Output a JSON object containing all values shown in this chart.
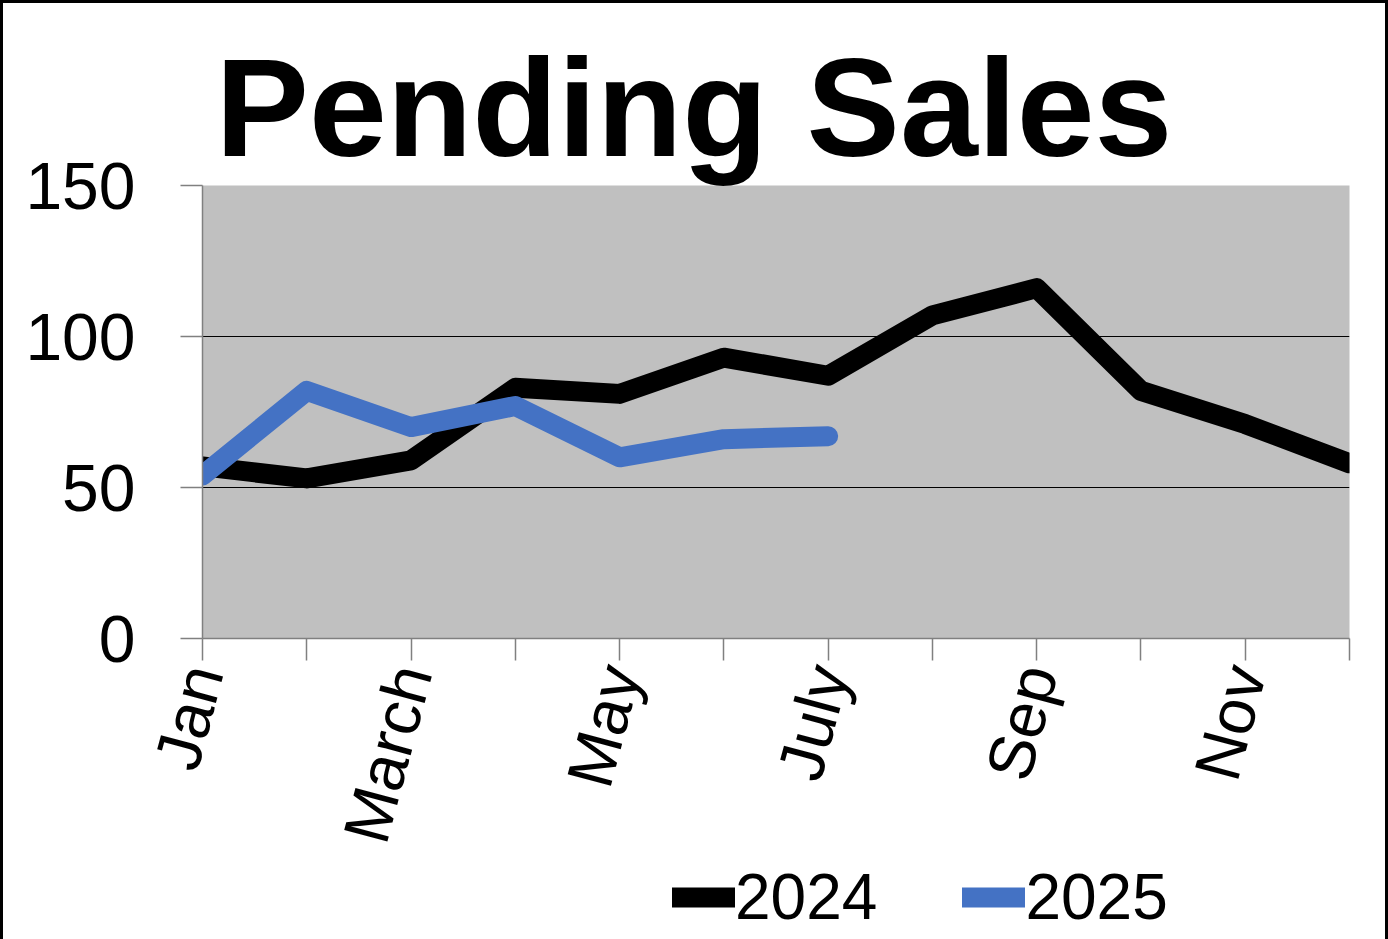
{
  "chart_data": {
    "type": "line",
    "title": "Pending Sales",
    "categories": [
      "Jan",
      null,
      "March",
      null,
      "May",
      null,
      "July",
      null,
      "Sep",
      null,
      "Nov",
      null
    ],
    "series": [
      {
        "name": "2024",
        "color": "#000000",
        "values": [
          57,
          53,
          59,
          83,
          81,
          93,
          87,
          107,
          116,
          82,
          71,
          58
        ]
      },
      {
        "name": "2025",
        "color": "#4472c4",
        "values": [
          54,
          82,
          70,
          77,
          60,
          66,
          67,
          null,
          null,
          null,
          null,
          null
        ]
      }
    ],
    "ylim": [
      0,
      150
    ],
    "yticks": [
      0,
      50,
      100,
      150
    ],
    "grid": "y",
    "legend": "bottom",
    "line_style": "solid"
  }
}
